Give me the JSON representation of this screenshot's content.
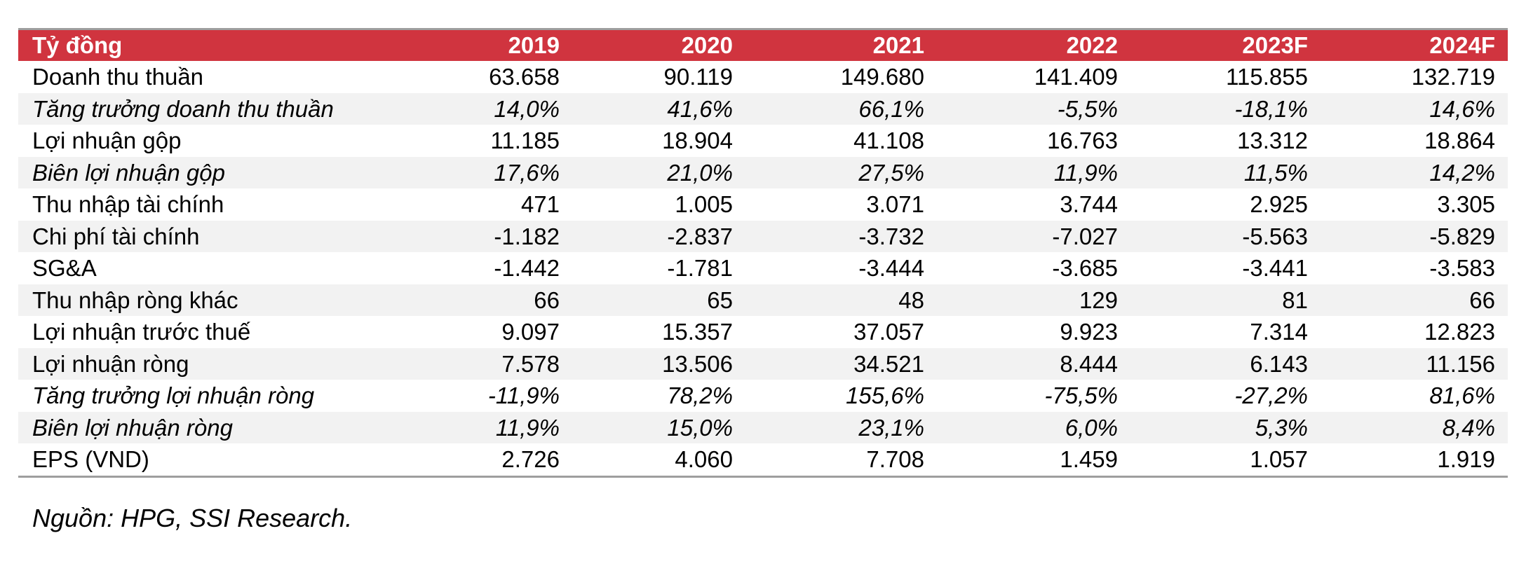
{
  "table": {
    "header": [
      "Tỷ đồng",
      "2019",
      "2020",
      "2021",
      "2022",
      "2023F",
      "2024F"
    ],
    "rows": [
      {
        "label": "Doanh thu thuần",
        "italic": false,
        "values": [
          "63.658",
          "90.119",
          "149.680",
          "141.409",
          "115.855",
          "132.719"
        ]
      },
      {
        "label": "Tăng trưởng doanh thu thuần",
        "italic": true,
        "values": [
          "14,0%",
          "41,6%",
          "66,1%",
          "-5,5%",
          "-18,1%",
          "14,6%"
        ]
      },
      {
        "label": "Lợi nhuận gộp",
        "italic": false,
        "values": [
          "11.185",
          "18.904",
          "41.108",
          "16.763",
          "13.312",
          "18.864"
        ]
      },
      {
        "label": "Biên lợi nhuận gộp",
        "italic": true,
        "values": [
          "17,6%",
          "21,0%",
          "27,5%",
          "11,9%",
          "11,5%",
          "14,2%"
        ]
      },
      {
        "label": "Thu nhập tài chính",
        "italic": false,
        "values": [
          "471",
          "1.005",
          "3.071",
          "3.744",
          "2.925",
          "3.305"
        ]
      },
      {
        "label": "Chi phí tài chính",
        "italic": false,
        "values": [
          "-1.182",
          "-2.837",
          "-3.732",
          "-7.027",
          "-5.563",
          "-5.829"
        ]
      },
      {
        "label": "SG&A",
        "italic": false,
        "values": [
          "-1.442",
          "-1.781",
          "-3.444",
          "-3.685",
          "-3.441",
          "-3.583"
        ]
      },
      {
        "label": "Thu nhập ròng khác",
        "italic": false,
        "values": [
          "66",
          "65",
          "48",
          "129",
          "81",
          "66"
        ]
      },
      {
        "label": "Lợi nhuận trước thuế",
        "italic": false,
        "values": [
          "9.097",
          "15.357",
          "37.057",
          "9.923",
          "7.314",
          "12.823"
        ]
      },
      {
        "label": "Lợi nhuận ròng",
        "italic": false,
        "values": [
          "7.578",
          "13.506",
          "34.521",
          "8.444",
          "6.143",
          "11.156"
        ]
      },
      {
        "label": "Tăng trưởng lợi nhuận ròng",
        "italic": true,
        "values": [
          "-11,9%",
          "78,2%",
          "155,6%",
          "-75,5%",
          "-27,2%",
          "81,6%"
        ]
      },
      {
        "label": "Biên lợi nhuận ròng",
        "italic": true,
        "values": [
          "11,9%",
          "15,0%",
          "23,1%",
          "6,0%",
          "5,3%",
          "8,4%"
        ]
      },
      {
        "label": "EPS (VND)",
        "italic": false,
        "values": [
          "2.726",
          "4.060",
          "7.708",
          "1.459",
          "1.057",
          "1.919"
        ]
      }
    ]
  },
  "source": "Nguồn: HPG, SSI Research.",
  "colors": {
    "header_bg": "#d0343f",
    "stripe": "#f2f2f2",
    "rule": "#9e9e9e"
  }
}
